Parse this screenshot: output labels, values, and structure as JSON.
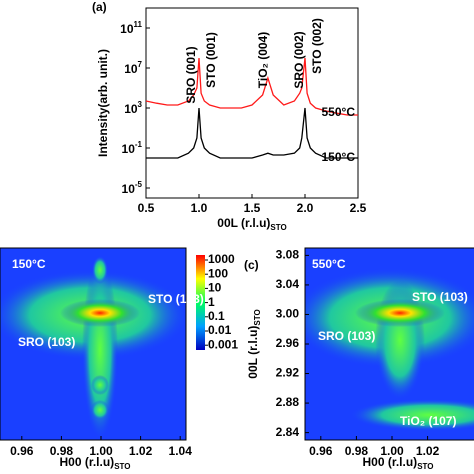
{
  "chart_data": [
    {
      "type": "line",
      "panel": "(a)",
      "log_y": true,
      "x_label": {
        "text": "00L (r.l.u)",
        "subscript": "STO"
      },
      "y_label": "Intensity(arb. unit.)",
      "xlim": [
        0.5,
        2.5
      ],
      "xticks": [
        0.5,
        {
          "value": 1,
          "label": "1.0"
        },
        1.5,
        {
          "value": 2,
          "label": "2.0"
        },
        2.5
      ],
      "ylim": [
        1e-06,
        10000000000000
      ],
      "yticks": [
        {
          "value": 1e-05,
          "label": "10",
          "exponent": "-5"
        },
        {
          "value": 0.1,
          "label": "10",
          "exponent": "-1"
        },
        {
          "value": 1000,
          "label": "10",
          "exponent": "3"
        },
        {
          "value": 10000000,
          "label": "10",
          "exponent": "7"
        },
        {
          "value": 100000000000,
          "label": "10",
          "exponent": "11"
        }
      ],
      "x": [
        0.5,
        0.6,
        0.7,
        0.8,
        0.9,
        0.95,
        0.98,
        1.0,
        1.02,
        1.05,
        1.1,
        1.2,
        1.3,
        1.4,
        1.5,
        1.6,
        1.65,
        1.7,
        1.8,
        1.9,
        1.95,
        1.97,
        2.0,
        2.02,
        2.05,
        2.1,
        2.2,
        2.3,
        2.4,
        2.5
      ],
      "series": [
        {
          "name": "550°C",
          "color": "#ff1a1a",
          "values": [
            5000,
            3000,
            2000,
            2000,
            5000,
            20000,
            100000,
            100000000,
            30000,
            5000,
            2000,
            1000,
            1000,
            1000,
            2000,
            20000,
            1000000,
            20000,
            2000,
            5000,
            30000,
            100000,
            100000000,
            30000,
            3000,
            1000,
            500,
            300,
            200,
            200
          ]
        },
        {
          "name": "150°C",
          "color": "#000000",
          "values": [
            0.01,
            0.01,
            0.01,
            0.01,
            0.03,
            0.1,
            1,
            1000,
            1,
            0.1,
            0.03,
            0.01,
            0.01,
            0.01,
            0.01,
            0.02,
            0.03,
            0.02,
            0.02,
            0.03,
            0.1,
            1,
            1000,
            1,
            0.1,
            0.03,
            0.01,
            0.01,
            0.01,
            0.01
          ]
        }
      ],
      "annotations": [
        "SRO (001)",
        "STO (001)",
        "TiO₂ (004)",
        "SRO (002)",
        "STO (002)"
      ]
    },
    {
      "type": "heatmap",
      "x_label": {
        "text": "H00 (r.l.u)",
        "subscript": "STO"
      },
      "xlim": [
        0.95,
        1.05
      ],
      "xticks": [
        0.96,
        0.98,
        {
          "value": 1,
          "label": "1.00"
        },
        1.02,
        1.04
      ],
      "colorbar_ticks": [
        1000,
        100,
        10,
        1,
        0.1,
        0.01,
        0.001
      ],
      "annotations": [
        "150°C",
        "STO (103)",
        "SRO (103)"
      ]
    },
    {
      "type": "heatmap",
      "panel": "(c)",
      "x_label": {
        "text": "H00 (r.l.u)",
        "subscript": "STO"
      },
      "y_label": {
        "text": "00L (r.l.u)",
        "subscript": "STO"
      },
      "xlim": [
        0.95,
        1.05
      ],
      "xticks": [
        0.96,
        0.98,
        {
          "value": 1,
          "label": "1.00"
        },
        1.02
      ],
      "ylim": [
        2.83,
        3.09
      ],
      "yticks": [
        3.08,
        3.04,
        {
          "value": 3,
          "label": "3.00"
        },
        2.96,
        2.92,
        2.88,
        2.84
      ],
      "annotations": [
        "550°C",
        "STO (103)",
        "SRO (103)",
        "TiO₂ (107)"
      ]
    }
  ]
}
